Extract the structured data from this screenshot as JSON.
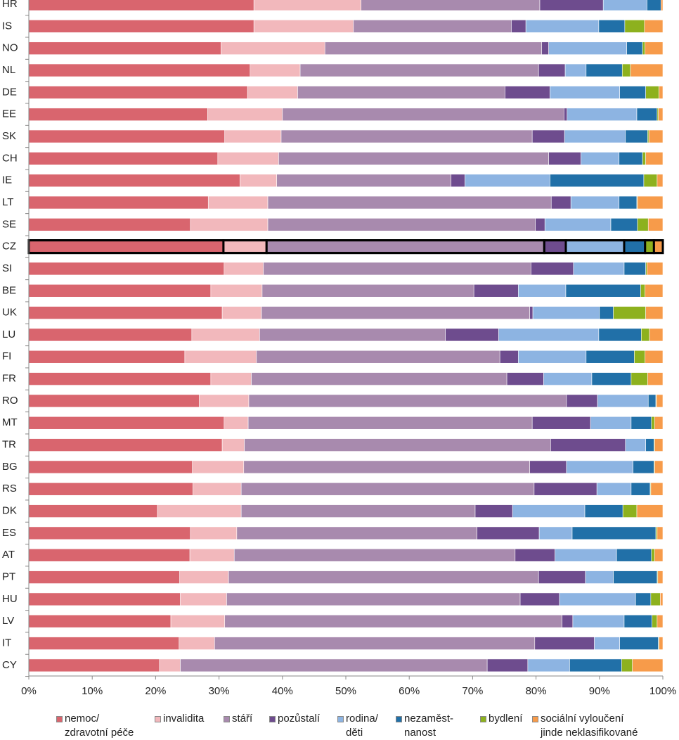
{
  "chart_data": {
    "type": "stacked_bar_horizontal",
    "categories": [
      "HR",
      "IS",
      "NO",
      "NL",
      "DE",
      "EE",
      "SK",
      "CH",
      "IE",
      "LT",
      "SE",
      "CZ",
      "SI",
      "BE",
      "UK",
      "LU",
      "FI",
      "FR",
      "RO",
      "MT",
      "TR",
      "BG",
      "RS",
      "DK",
      "ES",
      "AT",
      "PT",
      "HU",
      "LV",
      "IT",
      "CY"
    ],
    "highlight": "CZ",
    "xlim": [
      0,
      100
    ],
    "xticks": [
      {
        "value": 0,
        "label": "0%"
      },
      {
        "value": 10,
        "label": "10%"
      },
      {
        "value": 20,
        "label": "20%"
      },
      {
        "value": 30,
        "label": "30%"
      },
      {
        "value": 40,
        "label": "40%"
      },
      {
        "value": 50,
        "label": "50%"
      },
      {
        "value": 60,
        "label": "60%"
      },
      {
        "value": 70,
        "label": "70%"
      },
      {
        "value": 80,
        "label": "80%"
      },
      {
        "value": 90,
        "label": "90%"
      },
      {
        "value": 100,
        "label": "100%"
      }
    ],
    "legend": "bottom",
    "series": [
      {
        "name": "nemoc/\nzdravotní péče",
        "color": "#d9656e",
        "values": [
          35.5,
          35.5,
          30.3,
          34.9,
          34.5,
          28.2,
          30.9,
          29.8,
          33.3,
          28.3,
          25.5,
          30.7,
          30.8,
          28.7,
          30.5,
          25.7,
          24.6,
          28.7,
          26.9,
          30.8,
          30.5,
          25.8,
          25.9,
          20.3,
          25.5,
          25.4,
          23.8,
          23.9,
          22.4,
          23.7,
          20.6
        ]
      },
      {
        "name": "invalidita",
        "color": "#f2b8bc",
        "values": [
          16.9,
          15.7,
          16.4,
          7.9,
          7.9,
          11.8,
          8.9,
          9.6,
          5.8,
          9.4,
          12.2,
          6.8,
          6.2,
          8.1,
          6.2,
          10.7,
          11.3,
          6.4,
          7.8,
          3.8,
          3.5,
          8.1,
          7.6,
          13.2,
          7.3,
          7.0,
          7.7,
          7.3,
          8.5,
          5.6,
          3.3
        ]
      },
      {
        "name": "stáří",
        "color": "#a88aae",
        "values": [
          28.2,
          24.9,
          34.2,
          37.6,
          32.7,
          44.4,
          39.6,
          42.6,
          27.5,
          44.7,
          42.2,
          43.8,
          42.2,
          33.4,
          42.3,
          29.3,
          38.4,
          40.3,
          50.1,
          44.8,
          48.3,
          45.1,
          46.2,
          36.9,
          37.9,
          44.3,
          48.9,
          46.3,
          53.2,
          50.5,
          48.4
        ]
      },
      {
        "name": "pozůstalí",
        "color": "#6e4c8e",
        "values": [
          10.0,
          2.3,
          1.1,
          4.2,
          7.1,
          0.5,
          5.1,
          5.1,
          2.2,
          3.1,
          1.5,
          3.4,
          6.7,
          7.0,
          0.5,
          8.4,
          2.9,
          5.8,
          4.9,
          9.2,
          11.8,
          5.8,
          9.9,
          5.9,
          9.8,
          6.3,
          7.4,
          6.2,
          1.7,
          9.4,
          6.4
        ]
      },
      {
        "name": "rodina/\nděti",
        "color": "#8db4e2",
        "values": [
          6.9,
          11.5,
          12.3,
          3.3,
          11.0,
          11.0,
          9.6,
          6.0,
          13.4,
          7.6,
          10.4,
          9.2,
          8.0,
          7.5,
          10.5,
          15.8,
          10.7,
          7.6,
          8.0,
          6.4,
          3.2,
          10.5,
          5.4,
          11.4,
          5.2,
          9.7,
          4.4,
          12.0,
          8.1,
          4.0,
          6.6
        ]
      },
      {
        "name": "nezaměst-\nnanost",
        "color": "#2170a8",
        "values": [
          2.2,
          4.1,
          2.5,
          5.7,
          4.1,
          3.2,
          3.5,
          3.7,
          14.8,
          2.8,
          4.2,
          3.3,
          3.4,
          11.8,
          2.2,
          6.7,
          7.6,
          6.2,
          1.2,
          3.2,
          1.3,
          3.3,
          3.0,
          6.0,
          13.2,
          5.5,
          6.9,
          2.4,
          4.4,
          6.1,
          8.2
        ]
      },
      {
        "name": "bydlení",
        "color": "#8db11e",
        "values": [
          0,
          3.1,
          0.4,
          1.3,
          2.1,
          0.2,
          0.2,
          0.5,
          2.1,
          0.1,
          1.7,
          1.4,
          0.2,
          0.7,
          5.1,
          1.3,
          1.7,
          2.6,
          0.1,
          0.5,
          0.1,
          0.1,
          0.1,
          2.2,
          0.2,
          0.5,
          0.1,
          1.5,
          0.8,
          0.1,
          1.7
        ]
      },
      {
        "name": "sociální vyloučení\njinde neklasifikované",
        "color": "#f79b4a",
        "values": [
          0.3,
          2.9,
          2.8,
          5.1,
          0.6,
          0.7,
          2.2,
          2.7,
          0.9,
          4.0,
          2.3,
          1.4,
          2.5,
          2.8,
          2.7,
          2.1,
          2.8,
          2.4,
          1.0,
          1.3,
          1.3,
          1.3,
          1.9,
          4.1,
          0.9,
          1.3,
          0.8,
          0.4,
          0.9,
          0.6,
          4.8
        ]
      }
    ]
  }
}
